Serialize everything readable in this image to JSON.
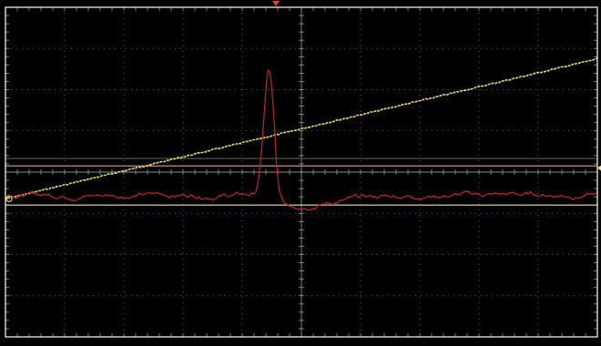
{
  "screen": {
    "background": "#000000",
    "frame_color": "#ffffff",
    "grid_color": "#9a9a9a",
    "grid_divisions": {
      "horizontal": 10,
      "vertical": 8
    },
    "grid_minor_subdivisions": 5
  },
  "traces": [
    {
      "id": "yellow-ramp",
      "color": "#e8e06a",
      "shape": "linear-ramp",
      "start_level": -0.65,
      "end_level": 2.75
    },
    {
      "id": "red-pulse",
      "color": "#c0282a",
      "shape": "baseline-with-peak",
      "baseline_level": -0.55,
      "peak_level": 2.45,
      "peak_position_div": -0.55,
      "undershoot_level": -0.85
    }
  ],
  "cursors": [
    {
      "id": "cursor-upper",
      "color": "#c98a93",
      "level": 0.15
    },
    {
      "id": "cursor-lower",
      "color": "#e9e2b0",
      "level": -0.8
    },
    {
      "id": "reference-line",
      "color": "#5a5a5a",
      "level": 0.33
    }
  ],
  "markers": {
    "trigger_marker_color": "#e04040",
    "level_marker_color": "#e8e06a"
  }
}
